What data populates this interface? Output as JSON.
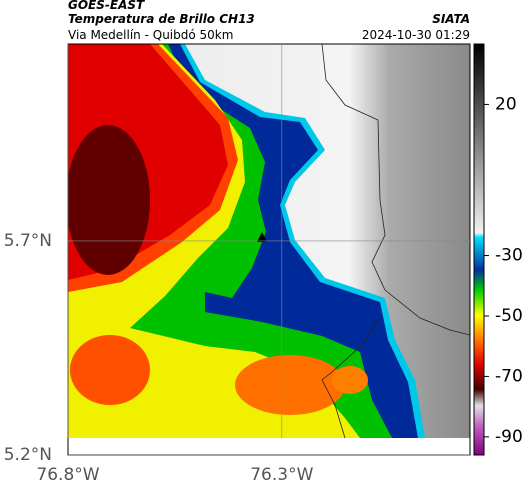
{
  "header": {
    "satellite": "GOES-EAST",
    "product": "Temperatura de Brillo CH13",
    "route": "Via Medellín - Quibdó 50km",
    "org": "SIATA",
    "datetime": "2024-10-30 01:29"
  },
  "chart_data": {
    "type": "map",
    "xlim": [
      -76.8,
      -75.86
    ],
    "ylim": [
      5.2,
      6.16
    ],
    "xticks": [
      {
        "value": -76.8,
        "label": "76.8°W"
      },
      {
        "value": -76.3,
        "label": "76.3°W"
      }
    ],
    "yticks": [
      {
        "value": 5.2,
        "label": "5.2°N"
      },
      {
        "value": 5.7,
        "label": "5.7°N"
      }
    ],
    "grid": true,
    "colorbar": {
      "lim": [
        40,
        -96
      ],
      "ticks": [
        20,
        -30,
        -50,
        -70,
        -90
      ]
    }
  }
}
